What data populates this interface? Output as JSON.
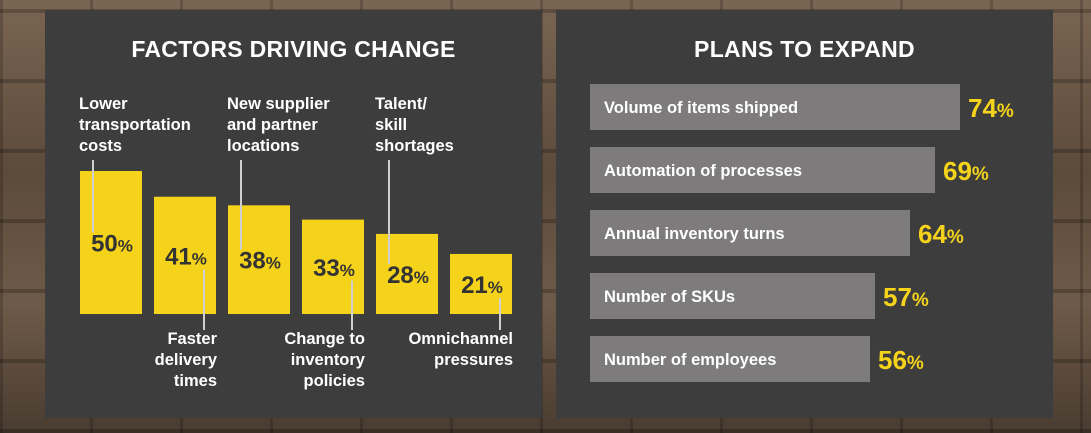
{
  "colors": {
    "panel": "#3d3d3d",
    "accent": "#f5d31a",
    "hbar": "#7d7b7b",
    "connector": "#cfcfcf"
  },
  "chart_data": [
    {
      "type": "bar",
      "title": "FACTORS DRIVING CHANGE",
      "categories": [
        "Lower transportation costs",
        "Faster delivery times",
        "New supplier and partner locations",
        "Change to inventory policies",
        "Talent/ skill shortages",
        "Omnichannel pressures"
      ],
      "label_lines": [
        [
          "Lower",
          "transportation",
          "costs"
        ],
        [
          "Faster",
          "delivery",
          "times"
        ],
        [
          "New supplier",
          "and partner",
          "locations"
        ],
        [
          "Change to",
          "inventory",
          "policies"
        ],
        [
          "Talent/",
          "skill",
          "shortages"
        ],
        [
          "Omnichannel",
          "pressures"
        ]
      ],
      "label_position": [
        "top",
        "bottom",
        "top",
        "bottom",
        "top",
        "bottom"
      ],
      "values": [
        50,
        41,
        38,
        33,
        28,
        21
      ],
      "unit": "%",
      "ylim": [
        0,
        50
      ]
    },
    {
      "type": "bar",
      "orientation": "horizontal",
      "title": "PLANS TO EXPAND",
      "categories": [
        "Volume of items shipped",
        "Automation of processes",
        "Annual inventory turns",
        "Number of SKUs",
        "Number of employees"
      ],
      "values": [
        74,
        69,
        64,
        57,
        56
      ],
      "unit": "%"
    }
  ]
}
